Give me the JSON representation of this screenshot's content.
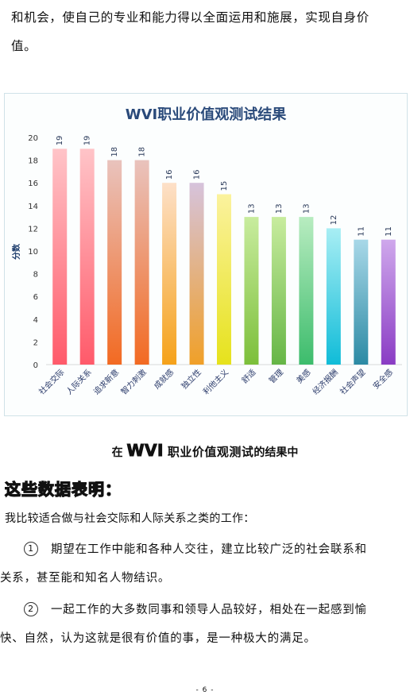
{
  "intro_paragraph": {
    "line1": "和机会，使自己的专业和能力得以全面运用和施展，实现自身价",
    "line2": "值。"
  },
  "chart_data": {
    "type": "bar",
    "title": "WVI职业价值观测试结果",
    "ylabel": "分数",
    "xlabel": "",
    "ylim": [
      0,
      20
    ],
    "yticks": [
      0,
      2,
      4,
      6,
      8,
      10,
      12,
      14,
      16,
      18,
      20
    ],
    "grid": false,
    "categories": [
      "社会交际",
      "人际关系",
      "追求新意",
      "智力刺激",
      "成就感",
      "独立性",
      "利他主义",
      "舒适",
      "管理",
      "美感",
      "经济报酬",
      "社会声望",
      "安全感"
    ],
    "values": [
      19,
      19,
      18,
      18,
      16,
      16,
      15,
      13,
      13,
      13,
      12,
      11,
      11
    ],
    "bar_colors": [
      [
        "#ff5a6a",
        "#ffc4c8"
      ],
      [
        "#ff5a6a",
        "#ffc4c8"
      ],
      [
        "#f26a22",
        "#e9c3bd"
      ],
      [
        "#f26a22",
        "#e9c3bd"
      ],
      [
        "#f5a21a",
        "#fde0c8"
      ],
      [
        "#f0a028",
        "#d6c3dc"
      ],
      [
        "#e6e21c",
        "#fbf29e"
      ],
      [
        "#7cbf3a",
        "#c8ec9e"
      ],
      [
        "#66b646",
        "#c8ec9e"
      ],
      [
        "#3cbc6c",
        "#b8ecc0"
      ],
      [
        "#10bcd8",
        "#a8eef4"
      ],
      [
        "#2c8aa4",
        "#a8d8e8"
      ],
      [
        "#8a3cc4",
        "#cfa8ec"
      ]
    ]
  },
  "result_intro": {
    "prefix": "在",
    "brand": "WVI",
    "test_name": "职业价值观测试",
    "suffix": "的结果中"
  },
  "data_heading": "这些数据表明：",
  "lead_text": "我比较适合做与社会交际和人际关系之类的工作：",
  "items": [
    {
      "num": "1",
      "line1": "期望在工作中能和各种人交往，建立比较广泛的社会联系和",
      "line2": "关系，甚至能和知名人物结识。"
    },
    {
      "num": "2",
      "line1": "一起工作的大多数同事和领导人品较好，相处在一起感到愉",
      "line2": "快、自然，认为这就是很有价值的事，是一种极大的满足。"
    }
  ],
  "page_number": "- 6 -"
}
